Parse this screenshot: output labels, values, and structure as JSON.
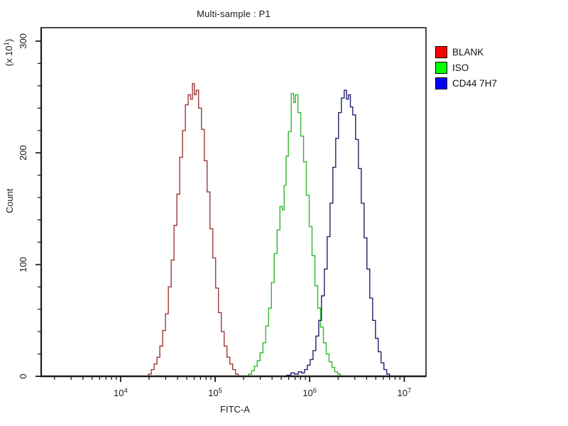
{
  "title": "Multi-sample : P1",
  "colors": {
    "background": "#ffffff",
    "axis": "#1c1c1c",
    "text": "#1a1a1a"
  },
  "axes": {
    "x": {
      "label": "FITC-A",
      "scale": "log10",
      "min_log10": 3.16,
      "max_log10": 7.23,
      "major_tick_exponents": [
        4,
        5,
        6,
        7
      ],
      "minor_tick_mantissas": [
        2,
        3,
        4,
        5,
        6,
        7,
        8,
        9
      ]
    },
    "y": {
      "label": "Count",
      "unit": {
        "prefix": "(x 10",
        "sup": "1",
        "suffix": ")"
      },
      "min": 0,
      "max": 312,
      "major_ticks": [
        0,
        100,
        200,
        300
      ],
      "minor_step": 20
    }
  },
  "legend": {
    "items": [
      {
        "label": "BLANK",
        "color": "#ff0000"
      },
      {
        "label": "ISO",
        "color": "#00ff00"
      },
      {
        "label": "CD44 7H7",
        "color": "#0000ff"
      }
    ]
  },
  "chart_data": {
    "type": "line",
    "subtype": "flow-cytometry-histogram",
    "title": "Multi-sample : P1",
    "xlabel": "FITC-A",
    "ylabel": "Count",
    "y_unit_multiplier": "x 10^1",
    "x_scale": "log10",
    "x_range": [
      1450,
      17000000
    ],
    "x_range_log10": [
      3.16,
      7.23
    ],
    "ylim": [
      0,
      312
    ],
    "grid": false,
    "legend_position": "right-outside",
    "series": [
      {
        "name": "BLANK",
        "curve_color": "#9b3a3a",
        "legend_color": "#ff0000",
        "peak_x": 59000,
        "peak_count": 262,
        "points_log10x_count": [
          [
            4.31,
            2
          ],
          [
            4.34,
            6
          ],
          [
            4.37,
            11
          ],
          [
            4.4,
            17
          ],
          [
            4.43,
            27
          ],
          [
            4.46,
            41
          ],
          [
            4.49,
            56
          ],
          [
            4.52,
            80
          ],
          [
            4.55,
            104
          ],
          [
            4.58,
            135
          ],
          [
            4.61,
            163
          ],
          [
            4.64,
            196
          ],
          [
            4.67,
            220
          ],
          [
            4.7,
            243
          ],
          [
            4.73,
            252
          ],
          [
            4.75,
            248
          ],
          [
            4.77,
            262
          ],
          [
            4.79,
            252
          ],
          [
            4.81,
            256
          ],
          [
            4.84,
            240
          ],
          [
            4.87,
            221
          ],
          [
            4.9,
            193
          ],
          [
            4.93,
            165
          ],
          [
            4.96,
            132
          ],
          [
            4.99,
            106
          ],
          [
            5.02,
            79
          ],
          [
            5.05,
            57
          ],
          [
            5.08,
            40
          ],
          [
            5.11,
            27
          ],
          [
            5.14,
            17
          ],
          [
            5.17,
            11
          ],
          [
            5.2,
            6
          ],
          [
            5.23,
            2
          ]
        ]
      },
      {
        "name": "ISO",
        "curve_color": "#2eb82e",
        "legend_color": "#00ff00",
        "peak_x": 660000,
        "peak_count": 253,
        "points_log10x_count": [
          [
            5.37,
            2
          ],
          [
            5.4,
            5
          ],
          [
            5.43,
            9
          ],
          [
            5.46,
            14
          ],
          [
            5.49,
            21
          ],
          [
            5.52,
            30
          ],
          [
            5.55,
            45
          ],
          [
            5.58,
            61
          ],
          [
            5.61,
            84
          ],
          [
            5.64,
            110
          ],
          [
            5.67,
            131
          ],
          [
            5.7,
            152
          ],
          [
            5.72,
            149
          ],
          [
            5.74,
            171
          ],
          [
            5.76,
            197
          ],
          [
            5.79,
            219
          ],
          [
            5.82,
            253
          ],
          [
            5.84,
            245
          ],
          [
            5.86,
            252
          ],
          [
            5.89,
            236
          ],
          [
            5.92,
            215
          ],
          [
            5.95,
            192
          ],
          [
            5.98,
            162
          ],
          [
            6.01,
            134
          ],
          [
            6.04,
            108
          ],
          [
            6.07,
            81
          ],
          [
            6.1,
            61
          ],
          [
            6.13,
            44
          ],
          [
            6.16,
            30
          ],
          [
            6.19,
            20
          ],
          [
            6.22,
            13
          ],
          [
            6.25,
            8
          ],
          [
            6.28,
            4
          ],
          [
            6.31,
            2
          ]
        ]
      },
      {
        "name": "CD44 7H7",
        "curve_color": "#20206b",
        "legend_color": "#0000ff",
        "peak_x": 2400000,
        "peak_count": 256,
        "points_log10x_count": [
          [
            5.78,
            1
          ],
          [
            5.82,
            3
          ],
          [
            5.86,
            2
          ],
          [
            5.9,
            4
          ],
          [
            5.93,
            3
          ],
          [
            5.96,
            6
          ],
          [
            5.99,
            10
          ],
          [
            6.02,
            15
          ],
          [
            6.05,
            23
          ],
          [
            6.08,
            36
          ],
          [
            6.11,
            50
          ],
          [
            6.14,
            72
          ],
          [
            6.17,
            96
          ],
          [
            6.2,
            125
          ],
          [
            6.23,
            155
          ],
          [
            6.26,
            187
          ],
          [
            6.29,
            213
          ],
          [
            6.32,
            236
          ],
          [
            6.35,
            249
          ],
          [
            6.38,
            256
          ],
          [
            6.4,
            248
          ],
          [
            6.42,
            252
          ],
          [
            6.44,
            241
          ],
          [
            6.47,
            234
          ],
          [
            6.5,
            212
          ],
          [
            6.53,
            186
          ],
          [
            6.56,
            155
          ],
          [
            6.59,
            124
          ],
          [
            6.62,
            96
          ],
          [
            6.65,
            70
          ],
          [
            6.68,
            50
          ],
          [
            6.71,
            34
          ],
          [
            6.74,
            22
          ],
          [
            6.77,
            12
          ],
          [
            6.8,
            6
          ],
          [
            6.83,
            2
          ]
        ]
      }
    ]
  }
}
